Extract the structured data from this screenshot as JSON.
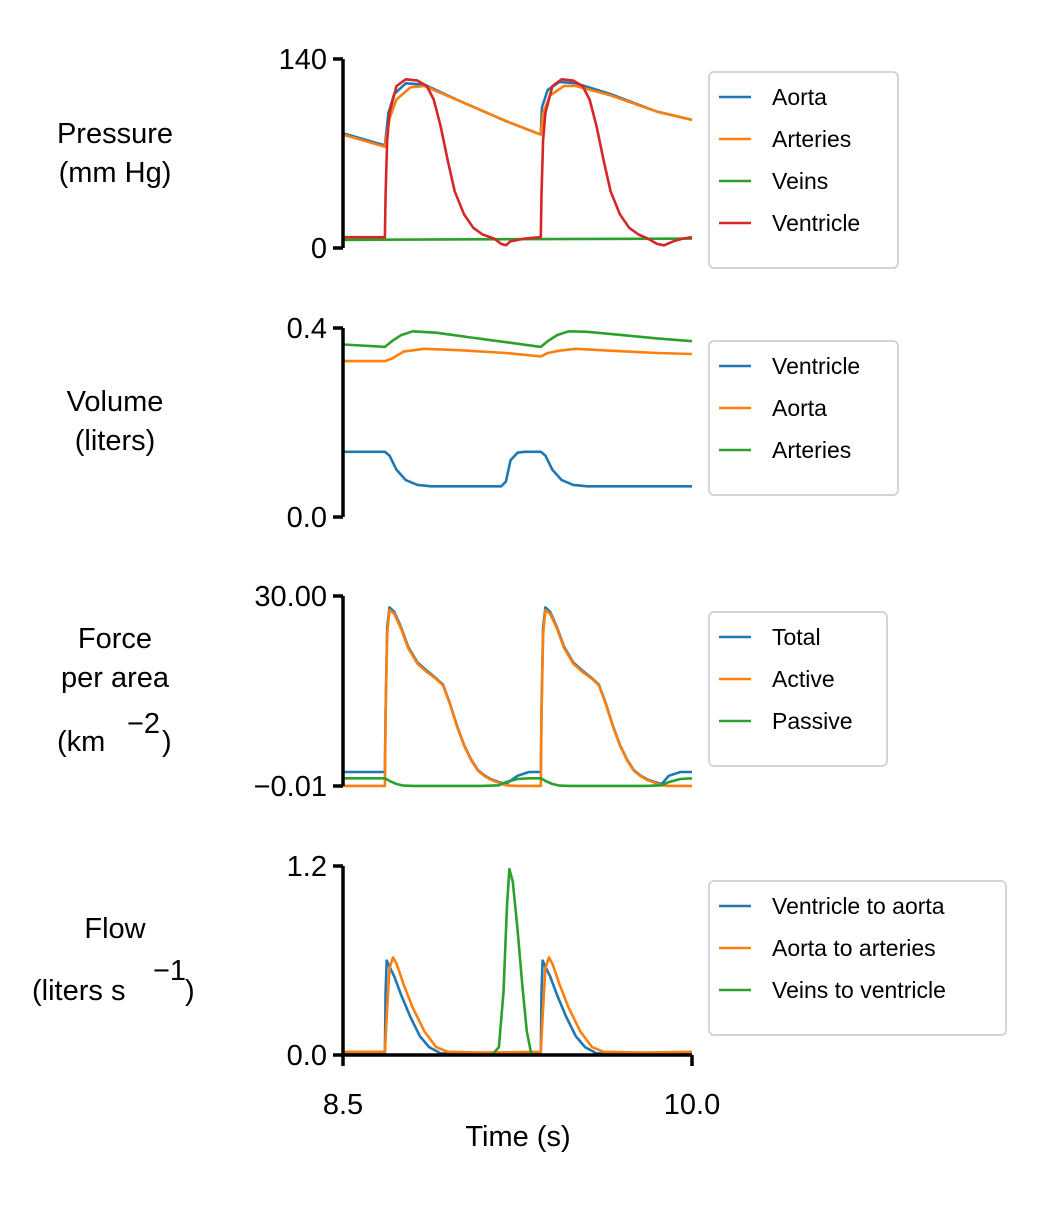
{
  "colors": {
    "blue": "#1f77b4",
    "orange": "#ff7f0e",
    "green": "#2ca02c",
    "red": "#d62728"
  },
  "xaxis": {
    "label": "Time (s)",
    "ticks": [
      "8.5",
      "10.0"
    ]
  },
  "chart_data": [
    {
      "type": "line",
      "ylabel": [
        "Pressure",
        "(mm Hg)"
      ],
      "ylim": [
        0,
        140
      ],
      "yticks": [
        "0",
        "140"
      ],
      "xlim": [
        8.5,
        10.0
      ],
      "legend": "right",
      "series": [
        {
          "name": "Aorta",
          "color": "#1f77b4",
          "x": [
            8.5,
            8.68,
            8.695,
            8.72,
            8.77,
            8.85,
            9.0,
            9.2,
            9.35,
            9.355,
            9.38,
            9.43,
            9.5,
            9.65,
            9.85,
            10.0
          ],
          "y": [
            85,
            76,
            100,
            114,
            122,
            121,
            109,
            94,
            84,
            104,
            117,
            123,
            122,
            114,
            101,
            95
          ]
        },
        {
          "name": "Arteries",
          "color": "#ff7f0e",
          "x": [
            8.5,
            8.68,
            8.7,
            8.73,
            8.79,
            8.85,
            9.0,
            9.2,
            9.35,
            9.36,
            9.39,
            9.45,
            9.5,
            9.65,
            9.85,
            10.0
          ],
          "y": [
            84,
            75,
            96,
            110,
            119,
            120,
            109,
            94,
            84,
            100,
            113,
            120,
            120,
            113,
            101,
            95
          ]
        },
        {
          "name": "Veins",
          "color": "#2ca02c",
          "x": [
            8.5,
            9.2,
            10.0
          ],
          "y": [
            6,
            6.5,
            7
          ]
        },
        {
          "name": "Ventricle",
          "color": "#d62728",
          "x": [
            8.5,
            8.68,
            8.683,
            8.69,
            8.7,
            8.73,
            8.77,
            8.82,
            8.86,
            8.89,
            8.92,
            8.95,
            8.98,
            9.02,
            9.06,
            9.1,
            9.15,
            9.18,
            9.2,
            9.22,
            9.28,
            9.35,
            9.353,
            9.36,
            9.37,
            9.4,
            9.44,
            9.49,
            9.53,
            9.56,
            9.59,
            9.62,
            9.65,
            9.69,
            9.73,
            9.77,
            9.81,
            9.85,
            9.88,
            9.92,
            9.96,
            10.0
          ],
          "y": [
            8,
            8,
            40,
            80,
            100,
            120,
            125,
            124,
            120,
            110,
            90,
            65,
            42,
            25,
            15,
            10,
            7,
            3,
            2,
            5,
            7,
            8,
            40,
            80,
            100,
            120,
            125,
            124,
            120,
            110,
            90,
            65,
            42,
            25,
            15,
            10,
            7,
            3,
            2,
            5,
            7,
            8
          ]
        }
      ]
    },
    {
      "type": "line",
      "ylabel": [
        "Volume",
        "(liters)"
      ],
      "ylim": [
        0.0,
        0.4
      ],
      "yticks": [
        "0.0",
        "0.4"
      ],
      "xlim": [
        8.5,
        10.0
      ],
      "legend": "right",
      "series": [
        {
          "name": "Ventricle",
          "color": "#1f77b4",
          "x": [
            8.5,
            8.68,
            8.7,
            8.73,
            8.77,
            8.82,
            8.88,
            9.0,
            9.18,
            9.2,
            9.22,
            9.25,
            9.28,
            9.35,
            9.37,
            9.4,
            9.44,
            9.49,
            9.55,
            9.7,
            9.85,
            10.0
          ],
          "y": [
            0.138,
            0.138,
            0.13,
            0.1,
            0.078,
            0.068,
            0.065,
            0.065,
            0.065,
            0.075,
            0.12,
            0.136,
            0.138,
            0.138,
            0.13,
            0.1,
            0.078,
            0.068,
            0.065,
            0.065,
            0.065,
            0.065
          ]
        },
        {
          "name": "Aorta",
          "color": "#ff7f0e",
          "x": [
            8.5,
            8.68,
            8.71,
            8.76,
            8.85,
            9.0,
            9.2,
            9.35,
            9.38,
            9.43,
            9.5,
            9.65,
            9.85,
            10.0
          ],
          "y": [
            0.33,
            0.33,
            0.335,
            0.35,
            0.356,
            0.353,
            0.347,
            0.34,
            0.347,
            0.352,
            0.356,
            0.352,
            0.347,
            0.345
          ]
        },
        {
          "name": "Arteries",
          "color": "#2ca02c",
          "x": [
            8.5,
            8.68,
            8.71,
            8.75,
            8.8,
            8.9,
            9.05,
            9.2,
            9.35,
            9.38,
            9.42,
            9.47,
            9.55,
            9.7,
            9.85,
            10.0
          ],
          "y": [
            0.365,
            0.36,
            0.372,
            0.385,
            0.393,
            0.39,
            0.38,
            0.37,
            0.36,
            0.372,
            0.385,
            0.393,
            0.392,
            0.385,
            0.378,
            0.372
          ]
        }
      ]
    },
    {
      "type": "line",
      "ylabel": [
        "Force",
        "per area",
        "(km",
        "−2",
        ")"
      ],
      "ylim": [
        -0.01,
        30.0
      ],
      "yticks": [
        "−0.01",
        "30.00"
      ],
      "xlim": [
        8.5,
        10.0
      ],
      "legend": "right",
      "series": [
        {
          "name": "Total",
          "color": "#1f77b4",
          "x": [
            8.5,
            8.68,
            8.683,
            8.69,
            8.7,
            8.72,
            8.75,
            8.78,
            8.82,
            8.86,
            8.9,
            8.93,
            8.96,
            8.99,
            9.02,
            9.05,
            9.08,
            9.11,
            9.14,
            9.17,
            9.2,
            9.25,
            9.3,
            9.35,
            9.353,
            9.36,
            9.37,
            9.39,
            9.42,
            9.45,
            9.49,
            9.53,
            9.57,
            9.6,
            9.63,
            9.66,
            9.69,
            9.72,
            9.75,
            9.78,
            9.81,
            9.84,
            9.87,
            9.9,
            9.95,
            10.0
          ],
          "y": [
            2.2,
            2.2,
            12,
            25,
            28.2,
            27.5,
            25,
            22,
            19.5,
            18.2,
            17,
            16,
            13,
            9.5,
            6.5,
            4.2,
            2.5,
            1.6,
            1.0,
            0.6,
            0.3,
            1.6,
            2.2,
            2.2,
            12,
            25,
            28.2,
            27.5,
            25,
            22,
            19.5,
            18.2,
            17,
            16,
            13,
            9.5,
            6.5,
            4.2,
            2.5,
            1.6,
            1.0,
            0.6,
            0.3,
            1.6,
            2.2,
            2.2
          ]
        },
        {
          "name": "Active",
          "color": "#ff7f0e",
          "x": [
            8.5,
            8.68,
            8.683,
            8.69,
            8.7,
            8.72,
            8.75,
            8.78,
            8.82,
            8.86,
            8.9,
            8.93,
            8.96,
            8.99,
            9.02,
            9.05,
            9.08,
            9.11,
            9.14,
            9.17,
            9.2,
            9.25,
            9.3,
            9.35,
            9.353,
            9.36,
            9.37,
            9.39,
            9.42,
            9.45,
            9.49,
            9.53,
            9.57,
            9.6,
            9.63,
            9.66,
            9.69,
            9.72,
            9.75,
            9.78,
            9.81,
            9.84,
            9.87,
            9.9,
            9.95,
            10.0
          ],
          "y": [
            0,
            0,
            11,
            24,
            27.8,
            27.2,
            24.8,
            21.8,
            19.3,
            18.0,
            16.9,
            15.9,
            12.9,
            9.4,
            6.4,
            4.1,
            2.4,
            1.5,
            0.9,
            0.5,
            0.1,
            0,
            0,
            0,
            11,
            24,
            27.8,
            27.2,
            24.8,
            21.8,
            19.3,
            18.0,
            16.9,
            15.9,
            12.9,
            9.4,
            6.4,
            4.1,
            2.4,
            1.5,
            0.9,
            0.5,
            0.1,
            0,
            0,
            0
          ]
        },
        {
          "name": "Passive",
          "color": "#2ca02c",
          "x": [
            8.5,
            8.68,
            8.7,
            8.73,
            8.76,
            8.8,
            9.1,
            9.17,
            9.2,
            9.25,
            9.3,
            9.35,
            9.37,
            9.4,
            9.43,
            9.47,
            9.8,
            9.87,
            9.9,
            9.95,
            10.0
          ],
          "y": [
            1.2,
            1.2,
            0.8,
            0.3,
            0.05,
            0,
            0,
            0.1,
            0.6,
            1.1,
            1.2,
            1.2,
            0.8,
            0.3,
            0.05,
            0,
            0,
            0.1,
            0.6,
            1.1,
            1.2
          ]
        }
      ]
    },
    {
      "type": "line",
      "ylabel": [
        "Flow",
        "(liters s",
        "−1",
        ")"
      ],
      "ylim": [
        0.0,
        1.2
      ],
      "yticks": [
        "0.0",
        "1.2"
      ],
      "xlim": [
        8.5,
        10.0
      ],
      "legend": "right",
      "series": [
        {
          "name": "Ventricle to aorta",
          "color": "#1f77b4",
          "x": [
            8.5,
            8.68,
            8.683,
            8.688,
            8.7,
            8.72,
            8.75,
            8.79,
            8.83,
            8.87,
            8.92,
            9.35,
            9.353,
            9.358,
            9.37,
            9.39,
            9.42,
            9.46,
            9.5,
            9.54,
            9.59,
            10.0
          ],
          "y": [
            0.01,
            0.01,
            0.4,
            0.6,
            0.56,
            0.5,
            0.38,
            0.24,
            0.12,
            0.05,
            0.01,
            0.01,
            0.4,
            0.6,
            0.56,
            0.5,
            0.38,
            0.24,
            0.12,
            0.05,
            0.01,
            0.01
          ]
        },
        {
          "name": "Aorta to arteries",
          "color": "#ff7f0e",
          "x": [
            8.5,
            8.68,
            8.69,
            8.7,
            8.715,
            8.73,
            8.76,
            8.8,
            8.85,
            8.9,
            8.95,
            9.1,
            9.35,
            9.36,
            9.37,
            9.385,
            9.4,
            9.43,
            9.47,
            9.52,
            9.57,
            9.62,
            9.8,
            10.0
          ],
          "y": [
            0.02,
            0.02,
            0.3,
            0.55,
            0.62,
            0.58,
            0.45,
            0.3,
            0.15,
            0.05,
            0.02,
            0.015,
            0.02,
            0.3,
            0.55,
            0.62,
            0.58,
            0.45,
            0.3,
            0.15,
            0.05,
            0.02,
            0.015,
            0.02
          ]
        },
        {
          "name": "Veins to ventricle",
          "color": "#2ca02c",
          "x": [
            8.5,
            9.14,
            9.17,
            9.19,
            9.205,
            9.215,
            9.23,
            9.25,
            9.27,
            9.29,
            9.31,
            10.0
          ],
          "y": [
            0,
            0,
            0.05,
            0.4,
            0.95,
            1.18,
            1.1,
            0.8,
            0.45,
            0.15,
            0,
            0
          ]
        }
      ]
    }
  ]
}
